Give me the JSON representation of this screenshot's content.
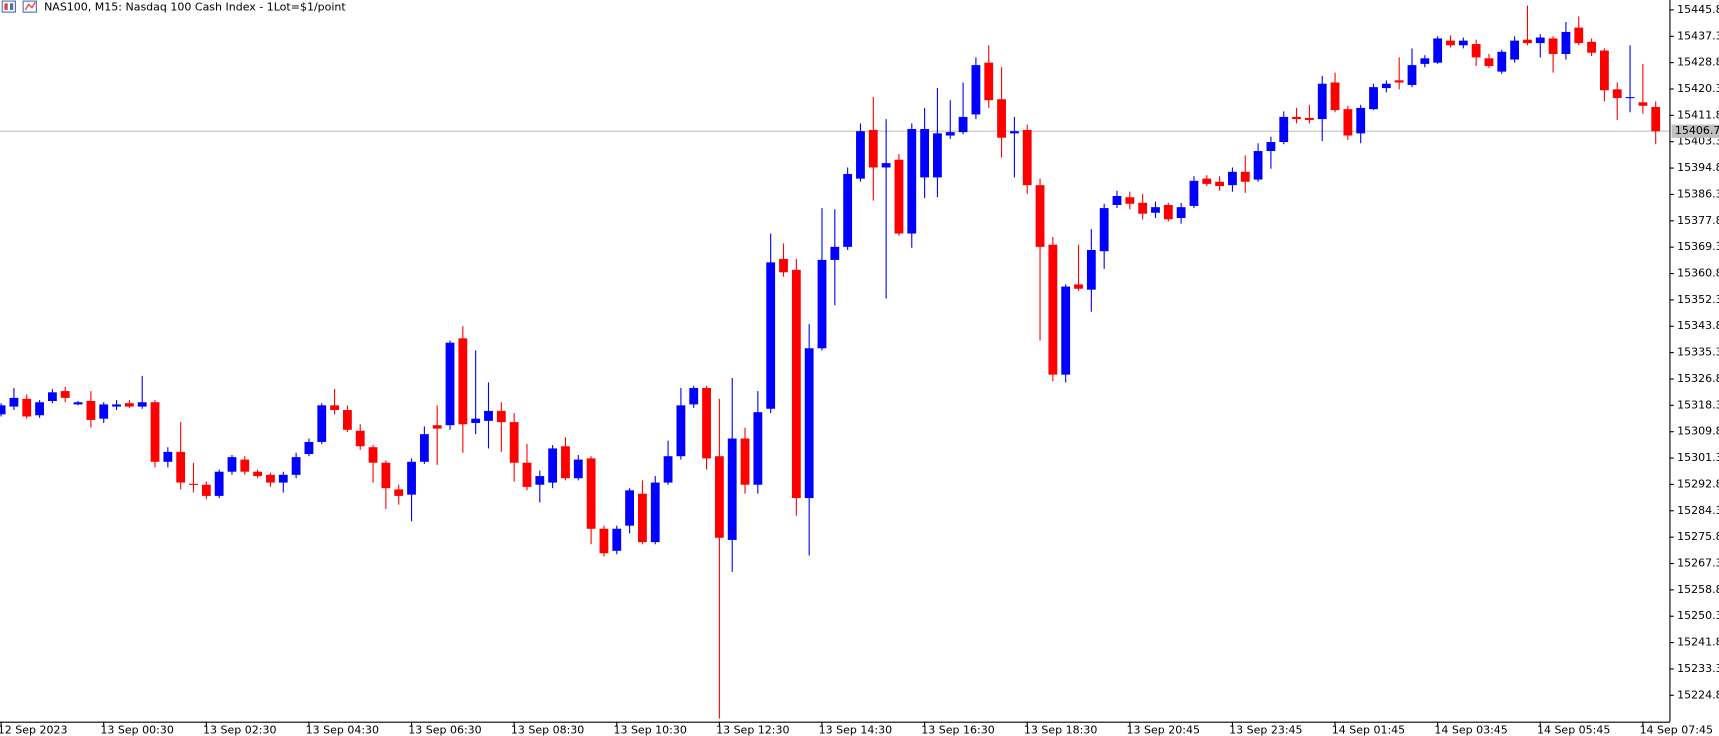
{
  "chart_data": {
    "type": "candlestick",
    "title": "NAS100, M15:  Nasdaq 100 Cash Index - 1Lot=$1/point",
    "categories": [
      "12 Sep 2023",
      null,
      null,
      null,
      null,
      null,
      null,
      null,
      "13 Sep 00:30",
      null,
      null,
      null,
      null,
      null,
      null,
      null,
      "13 Sep 02:30",
      null,
      null,
      null,
      null,
      null,
      null,
      null,
      "13 Sep 04:30",
      null,
      null,
      null,
      null,
      null,
      null,
      null,
      "13 Sep 06:30",
      null,
      null,
      null,
      null,
      null,
      null,
      null,
      "13 Sep 08:30",
      null,
      null,
      null,
      null,
      null,
      null,
      null,
      "13 Sep 10:30",
      null,
      null,
      null,
      null,
      null,
      null,
      null,
      "13 Sep 12:30",
      null,
      null,
      null,
      null,
      null,
      null,
      null,
      "13 Sep 14:30",
      null,
      null,
      null,
      null,
      null,
      null,
      null,
      "13 Sep 16:30",
      null,
      null,
      null,
      null,
      null,
      null,
      null,
      "13 Sep 18:30",
      null,
      null,
      null,
      null,
      null,
      null,
      null,
      "13 Sep 20:45",
      null,
      null,
      null,
      null,
      null,
      null,
      null,
      "13 Sep 23:45",
      null,
      null,
      null,
      null,
      null,
      null,
      null,
      "14 Sep 01:45",
      null,
      null,
      null,
      null,
      null,
      null,
      null,
      "14 Sep 03:45",
      null,
      null,
      null,
      null,
      null,
      null,
      null,
      "14 Sep 05:45",
      null,
      null,
      null,
      null,
      null,
      null,
      null,
      "14 Sep 07:45",
      null
    ],
    "open": [
      15315.4,
      15317.9,
      15320.4,
      15315.1,
      15319.7,
      15322.9,
      15318.6,
      15319.7,
      15314.0,
      15317.9,
      15319.0,
      15317.9,
      15319.3,
      15300.1,
      15303.3,
      15293.0,
      15292.7,
      15289.1,
      15296.9,
      15300.8,
      15296.9,
      15295.9,
      15293.4,
      15295.9,
      15302.6,
      15306.5,
      15318.3,
      15316.8,
      15310.1,
      15304.8,
      15299.8,
      15291.2,
      15289.5,
      15300.1,
      15311.9,
      15311.9,
      15339.9,
      15312.6,
      15313.3,
      15316.5,
      15312.9,
      15299.8,
      15292.7,
      15293.4,
      15305.1,
      15294.8,
      15301.2,
      15278.5,
      15271.4,
      15279.5,
      15289.8,
      15274.2,
      15293.4,
      15301.9,
      15318.6,
      15323.9,
      15301.9,
      15274.9,
      15307.6,
      15292.7,
      15317.2,
      15365.5,
      15362.0,
      15288.4,
      15336.7,
      15365.2,
      15369.4,
      15391.4,
      15407.1,
      15395.0,
      15397.5,
      15373.7,
      15391.8,
      15391.8,
      15405.3,
      15406.4,
      15412.1,
      15428.8,
      15417.0,
      15406.0,
      15407.1,
      15389.3,
      15370.1,
      15328.2,
      15357.3,
      15355.6,
      15368.0,
      15382.9,
      15385.4,
      15383.6,
      15380.4,
      15382.9,
      15378.7,
      15382.6,
      15391.4,
      15390.4,
      15389.3,
      15393.6,
      15391.1,
      15400.3,
      15403.2,
      15411.3,
      15411.0,
      15410.6,
      15422.4,
      15413.8,
      15406.0,
      15413.8,
      15420.6,
      15423.1,
      15421.6,
      15428.4,
      15428.8,
      15435.9,
      15434.4,
      15434.8,
      15430.2,
      15425.9,
      15429.8,
      15436.2,
      15435.1,
      15436.6,
      15431.6,
      15440.1,
      15435.5,
      15432.7,
      15420.2,
      15417.4,
      15416.0,
      15414.5
    ],
    "high": [
      15319.0,
      15323.9,
      15321.8,
      15320.0,
      15323.6,
      15324.3,
      15319.7,
      15322.9,
      15319.3,
      15320.0,
      15320.0,
      15327.8,
      15320.0,
      15304.8,
      15312.9,
      15299.8,
      15293.7,
      15297.6,
      15302.3,
      15301.9,
      15297.6,
      15296.6,
      15296.9,
      15303.0,
      15307.6,
      15319.0,
      15323.6,
      15318.3,
      15312.2,
      15305.5,
      15300.5,
      15292.7,
      15301.2,
      15311.5,
      15318.3,
      15339.2,
      15343.8,
      15336.0,
      15325.7,
      15319.3,
      15315.8,
      15305.8,
      15297.3,
      15305.5,
      15308.0,
      15302.3,
      15301.9,
      15279.5,
      15279.5,
      15291.6,
      15294.1,
      15295.5,
      15306.9,
      15323.9,
      15324.6,
      15324.6,
      15320.4,
      15327.1,
      15311.1,
      15322.9,
      15373.7,
      15370.5,
      15365.5,
      15344.5,
      15381.9,
      15381.5,
      15395.0,
      15409.2,
      15417.7,
      15410.6,
      15399.3,
      15409.2,
      15414.2,
      15420.6,
      15416.7,
      15422.4,
      15430.5,
      15434.4,
      15427.3,
      15411.3,
      15408.8,
      15391.4,
      15372.6,
      15357.3,
      15370.1,
      15375.1,
      15383.3,
      15387.5,
      15387.2,
      15386.5,
      15384.0,
      15383.6,
      15383.6,
      15392.2,
      15392.5,
      15392.2,
      15395.0,
      15398.9,
      15402.8,
      15404.9,
      15413.1,
      15414.2,
      15415.2,
      15424.5,
      15425.6,
      15414.9,
      15415.2,
      15422.0,
      15423.1,
      15430.5,
      15433.4,
      15431.2,
      15437.3,
      15437.6,
      15436.9,
      15436.2,
      15431.6,
      15433.0,
      15437.3,
      15447.2,
      15438.0,
      15437.3,
      15441.9,
      15443.7,
      15436.6,
      15433.4,
      15422.4,
      15434.4,
      15428.4,
      15416.3
    ],
    "low": [
      15314.7,
      15316.8,
      15314.0,
      15314.3,
      15319.0,
      15319.3,
      15318.3,
      15311.1,
      15312.6,
      15316.8,
      15317.5,
      15317.2,
      15298.3,
      15298.3,
      15291.2,
      15290.2,
      15288.0,
      15288.4,
      15295.9,
      15295.9,
      15294.8,
      15292.0,
      15290.2,
      15294.8,
      15301.9,
      15305.8,
      15315.4,
      15309.7,
      15304.0,
      15293.4,
      15284.9,
      15286.3,
      15280.9,
      15299.4,
      15299.1,
      15310.4,
      15303.0,
      15309.0,
      15304.4,
      15303.3,
      15293.7,
      15290.9,
      15287.0,
      15291.6,
      15294.1,
      15294.1,
      15273.5,
      15269.6,
      15270.3,
      15277.0,
      15273.5,
      15273.5,
      15292.7,
      15300.8,
      15317.5,
      15297.6,
      15217.3,
      15264.6,
      15289.8,
      15289.8,
      15315.8,
      15359.8,
      15282.7,
      15269.9,
      15336.0,
      15350.6,
      15368.4,
      15390.4,
      15384.3,
      15352.7,
      15373.0,
      15369.1,
      15385.1,
      15385.4,
      15404.2,
      15405.7,
      15410.6,
      15414.2,
      15398.2,
      15391.8,
      15386.5,
      15339.2,
      15326.1,
      15325.7,
      15355.2,
      15348.5,
      15362.3,
      15381.9,
      15381.5,
      15378.3,
      15378.7,
      15377.6,
      15376.9,
      15381.9,
      15389.0,
      15387.5,
      15387.2,
      15386.8,
      15390.4,
      15394.6,
      15402.5,
      15409.2,
      15409.2,
      15403.5,
      15412.8,
      15403.9,
      15402.8,
      15413.5,
      15419.2,
      15420.2,
      15420.9,
      15427.3,
      15428.4,
      15433.7,
      15433.4,
      15427.7,
      15427.0,
      15425.2,
      15428.8,
      15434.4,
      15430.5,
      15425.6,
      15429.8,
      15434.4,
      15430.9,
      15416.3,
      15410.3,
      15412.8,
      15412.4,
      15402.5
    ],
    "close": [
      15318.3,
      15320.7,
      15314.7,
      15319.3,
      15322.5,
      15320.7,
      15319.3,
      15313.6,
      15318.6,
      15318.6,
      15317.9,
      15319.3,
      15300.1,
      15303.3,
      15293.4,
      15292.7,
      15289.1,
      15296.9,
      15301.6,
      15296.9,
      15295.5,
      15293.4,
      15295.9,
      15301.6,
      15306.5,
      15318.3,
      15316.8,
      15310.4,
      15305.1,
      15299.8,
      15291.6,
      15289.1,
      15300.1,
      15309.0,
      15310.8,
      15338.5,
      15312.2,
      15314.0,
      15316.5,
      15312.9,
      15299.8,
      15292.0,
      15295.5,
      15304.4,
      15294.8,
      15300.8,
      15278.5,
      15270.6,
      15278.5,
      15290.9,
      15274.2,
      15293.4,
      15301.9,
      15318.3,
      15323.9,
      15301.2,
      15275.6,
      15307.6,
      15292.7,
      15316.1,
      15364.4,
      15361.2,
      15288.4,
      15336.7,
      15365.2,
      15369.4,
      15392.9,
      15406.7,
      15395.0,
      15396.4,
      15373.7,
      15407.4,
      15407.4,
      15406.0,
      15406.4,
      15411.3,
      15428.0,
      15416.7,
      15404.6,
      15406.7,
      15389.3,
      15369.4,
      15328.2,
      15356.6,
      15355.9,
      15368.4,
      15381.9,
      15385.8,
      15383.3,
      15380.1,
      15382.2,
      15378.3,
      15382.2,
      15390.7,
      15389.7,
      15389.0,
      15393.6,
      15390.4,
      15400.3,
      15403.2,
      15411.3,
      15410.6,
      15410.3,
      15422.0,
      15413.5,
      15405.3,
      15414.2,
      15420.9,
      15422.0,
      15422.4,
      15428.0,
      15430.2,
      15436.6,
      15434.4,
      15435.9,
      15430.5,
      15427.7,
      15432.3,
      15435.9,
      15435.1,
      15436.9,
      15431.6,
      15438.7,
      15435.1,
      15432.0,
      15419.9,
      15417.4,
      15417.7,
      15414.9,
      15406.7
    ],
    "up_color": "#0000ff",
    "down_color": "#ff0000",
    "ylim": [
      15216.3,
      15449.0
    ],
    "yticks": [
      15445.8,
      15437.3,
      15428.8,
      15420.3,
      15411.8,
      15403.3,
      15394.8,
      15386.3,
      15377.8,
      15369.3,
      15360.8,
      15352.3,
      15343.8,
      15335.3,
      15326.8,
      15318.3,
      15309.8,
      15301.3,
      15292.8,
      15284.3,
      15275.8,
      15267.3,
      15258.8,
      15250.3,
      15241.8,
      15233.3,
      15224.8
    ],
    "last_price": 15406.7
  }
}
